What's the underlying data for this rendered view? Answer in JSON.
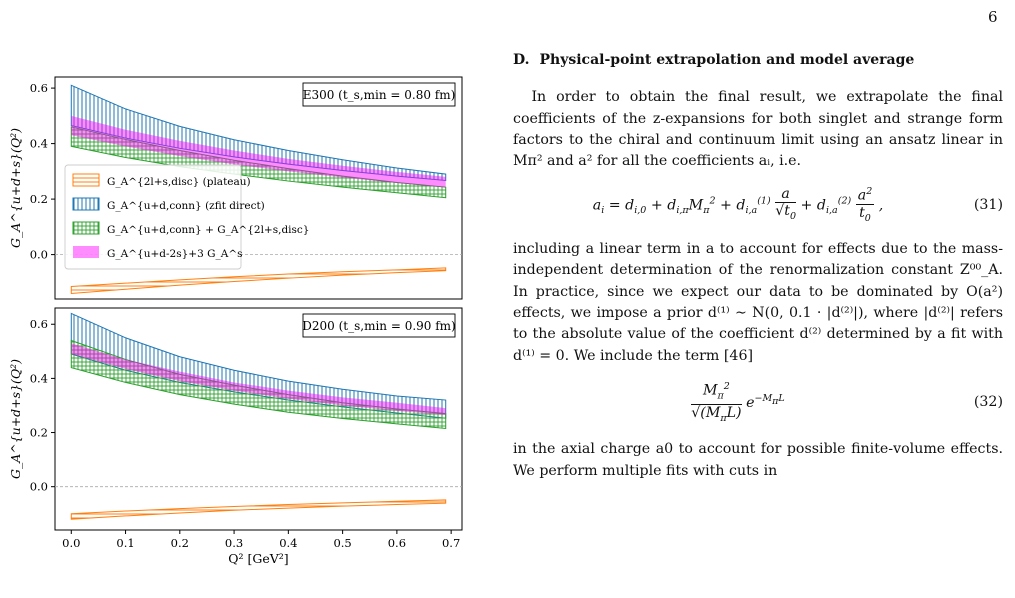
{
  "page_number": "6",
  "section": {
    "number": "D.",
    "title": "Physical-point extrapolation and model average"
  },
  "paragraph1": "In order to obtain the final result, we extrapolate the final coefficients of the z-expansions for both singlet and strange form factors to the chiral and continuum limit using an ansatz linear in Mπ² and a² for all the coefficients aᵢ, i.e.",
  "eq31_number": "(31)",
  "paragraph2": "including a linear term in a to account for effects due to the mass-independent determination of the renormalization constant Z⁰⁰_A. In practice, since we expect our data to be dominated by O(a²) effects, we impose a prior d⁽¹⁾ ∼ N(0, 0.1 · |d⁽²⁾|), where |d⁽²⁾| refers to the absolute value of the coefficient d⁽²⁾ determined by a fit with d⁽¹⁾ = 0. We include the term [46]",
  "eq32_number": "(32)",
  "paragraph3": "in the axial charge a0 to account for possible finite-volume effects. We perform multiple fits with cuts in",
  "chart_data": [
    {
      "type": "area",
      "annotation": "E300 (t_s,min = 0.80 fm)",
      "ylabel": "G_A^{u+d+s}(Q²)",
      "xlim": [
        -0.03,
        0.72
      ],
      "ylim": [
        -0.16,
        0.64
      ],
      "yticks": [
        "0.0",
        "0.2",
        "0.4",
        "0.6"
      ],
      "legend_position": "center-left",
      "series": [
        {
          "name": "G_A^{2l+s,disc} (plateau)",
          "color": "#ff7f0e",
          "hatch": "horizontal",
          "x": [
            0.0,
            0.1,
            0.2,
            0.3,
            0.4,
            0.5,
            0.6,
            0.69
          ],
          "lower": [
            -0.14,
            -0.125,
            -0.11,
            -0.097,
            -0.085,
            -0.074,
            -0.065,
            -0.058
          ],
          "upper": [
            -0.115,
            -0.103,
            -0.091,
            -0.08,
            -0.07,
            -0.062,
            -0.055,
            -0.048
          ]
        },
        {
          "name": "G_A^{u+d,conn} (zfit direct)",
          "color": "#1f77b4",
          "hatch": "vertical",
          "x": [
            0.0,
            0.1,
            0.2,
            0.3,
            0.4,
            0.5,
            0.6,
            0.69
          ],
          "lower": [
            0.465,
            0.42,
            0.383,
            0.352,
            0.326,
            0.303,
            0.283,
            0.267
          ],
          "upper": [
            0.61,
            0.525,
            0.462,
            0.414,
            0.375,
            0.342,
            0.312,
            0.29
          ]
        },
        {
          "name": "G_A^{u+d,conn} + G_A^{2l+s,disc}",
          "color": "#2ca02c",
          "hatch": "grid",
          "x": [
            0.0,
            0.1,
            0.2,
            0.3,
            0.4,
            0.5,
            0.6,
            0.69
          ],
          "lower": [
            0.39,
            0.35,
            0.317,
            0.29,
            0.265,
            0.243,
            0.223,
            0.205
          ],
          "upper": [
            0.46,
            0.415,
            0.375,
            0.34,
            0.31,
            0.283,
            0.26,
            0.243
          ]
        },
        {
          "name": "G_A^{u+d-2s}+3 G_A^s",
          "color": "#ff00ff",
          "hatch": "none",
          "x": [
            0.0,
            0.1,
            0.2,
            0.3,
            0.4,
            0.5,
            0.6,
            0.69
          ],
          "lower": [
            0.43,
            0.39,
            0.355,
            0.325,
            0.3,
            0.278,
            0.258,
            0.242
          ],
          "upper": [
            0.5,
            0.45,
            0.41,
            0.375,
            0.345,
            0.32,
            0.298,
            0.28
          ]
        }
      ]
    },
    {
      "type": "area",
      "annotation": "D200 (t_s,min = 0.90 fm)",
      "ylabel": "G_A^{u+d+s}(Q²)",
      "xlabel": "Q² [GeV²]",
      "xlim": [
        -0.03,
        0.72
      ],
      "ylim": [
        -0.16,
        0.66
      ],
      "xticks": [
        "0.0",
        "0.1",
        "0.2",
        "0.3",
        "0.4",
        "0.5",
        "0.6",
        "0.7"
      ],
      "yticks": [
        "0.0",
        "0.2",
        "0.4",
        "0.6"
      ],
      "series": [
        {
          "color": "#ff7f0e",
          "hatch": "horizontal",
          "x": [
            0.0,
            0.1,
            0.2,
            0.3,
            0.4,
            0.5,
            0.6,
            0.69
          ],
          "lower": [
            -0.12,
            -0.108,
            -0.097,
            -0.087,
            -0.079,
            -0.072,
            -0.066,
            -0.061
          ],
          "upper": [
            -0.1,
            -0.09,
            -0.081,
            -0.073,
            -0.066,
            -0.06,
            -0.054,
            -0.049
          ]
        },
        {
          "color": "#1f77b4",
          "hatch": "vertical",
          "x": [
            0.0,
            0.1,
            0.2,
            0.3,
            0.4,
            0.5,
            0.6,
            0.69
          ],
          "lower": [
            0.49,
            0.43,
            0.385,
            0.35,
            0.32,
            0.295,
            0.272,
            0.253
          ],
          "upper": [
            0.64,
            0.55,
            0.48,
            0.43,
            0.39,
            0.36,
            0.335,
            0.32
          ]
        },
        {
          "color": "#2ca02c",
          "hatch": "grid",
          "x": [
            0.0,
            0.1,
            0.2,
            0.3,
            0.4,
            0.5,
            0.6,
            0.69
          ],
          "lower": [
            0.44,
            0.385,
            0.34,
            0.305,
            0.275,
            0.252,
            0.232,
            0.215
          ],
          "upper": [
            0.54,
            0.47,
            0.415,
            0.375,
            0.34,
            0.31,
            0.287,
            0.27
          ]
        },
        {
          "color": "#ff00ff",
          "hatch": "none",
          "x": [
            0.0,
            0.1,
            0.2,
            0.3,
            0.4,
            0.5,
            0.6,
            0.69
          ],
          "lower": [
            0.49,
            0.435,
            0.39,
            0.355,
            0.325,
            0.3,
            0.28,
            0.265
          ],
          "upper": [
            0.53,
            0.47,
            0.425,
            0.385,
            0.355,
            0.33,
            0.31,
            0.29
          ]
        }
      ]
    }
  ]
}
